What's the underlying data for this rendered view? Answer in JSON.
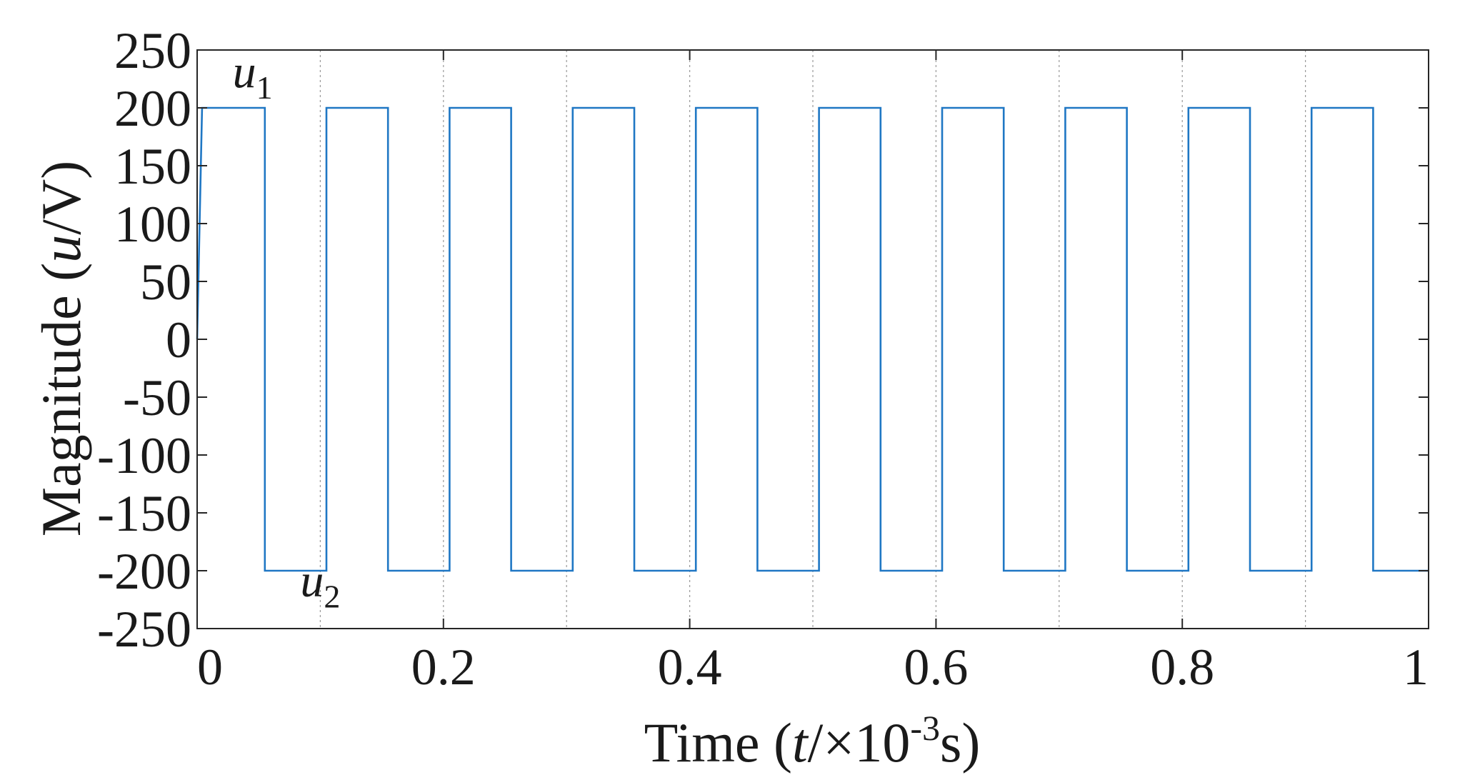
{
  "chart_data": {
    "type": "line",
    "xlabel": {
      "prefix": "Time (",
      "var": "t",
      "middle": "/×10",
      "exp": "-3",
      "suffix": "s)"
    },
    "ylabel": {
      "prefix": "Magnitude (",
      "var": "u",
      "suffix": "/V)"
    },
    "xlim": [
      0,
      1
    ],
    "ylim": [
      -250,
      250
    ],
    "xticks": [
      0,
      0.2,
      0.4,
      0.6,
      0.8,
      1
    ],
    "xtick_labels": [
      "0",
      "0.2",
      "0.4",
      "0.6",
      "0.8",
      "1"
    ],
    "yticks": [
      250,
      200,
      150,
      100,
      50,
      0,
      -50,
      -100,
      -150,
      -200,
      -250
    ],
    "ytick_labels": [
      "250",
      "200",
      "150",
      "100",
      "50",
      "0",
      "-50",
      "-100",
      "-150",
      "-200",
      "-250"
    ],
    "vertical_gridlines_x": [
      0.1,
      0.2,
      0.3,
      0.4,
      0.5,
      0.6,
      0.7,
      0.8,
      0.9
    ],
    "line_color": "#1f77c4",
    "series": [
      {
        "x": [
          0,
          0.004,
          0.055,
          0.055,
          0.105,
          0.105,
          0.155,
          0.155,
          0.205,
          0.205,
          0.255,
          0.255,
          0.305,
          0.305,
          0.355,
          0.355,
          0.405,
          0.405,
          0.455,
          0.455,
          0.505,
          0.505,
          0.555,
          0.555,
          0.605,
          0.605,
          0.655,
          0.655,
          0.705,
          0.705,
          0.755,
          0.755,
          0.805,
          0.805,
          0.855,
          0.855,
          0.905,
          0.905,
          0.955,
          0.955,
          1.0
        ],
        "y": [
          0,
          200,
          200,
          -200,
          -200,
          200,
          200,
          -200,
          -200,
          200,
          200,
          -200,
          -200,
          200,
          200,
          -200,
          -200,
          200,
          200,
          -200,
          -200,
          200,
          200,
          -200,
          -200,
          200,
          200,
          -200,
          -200,
          200,
          200,
          -200,
          -200,
          200,
          200,
          -200,
          -200,
          200,
          200,
          -200,
          -200
        ]
      }
    ],
    "annotations": [
      {
        "base": "u",
        "sub": "1",
        "x": 0.045,
        "y": 218
      },
      {
        "base": "u",
        "sub": "2",
        "x": 0.1,
        "y": -222
      }
    ]
  }
}
